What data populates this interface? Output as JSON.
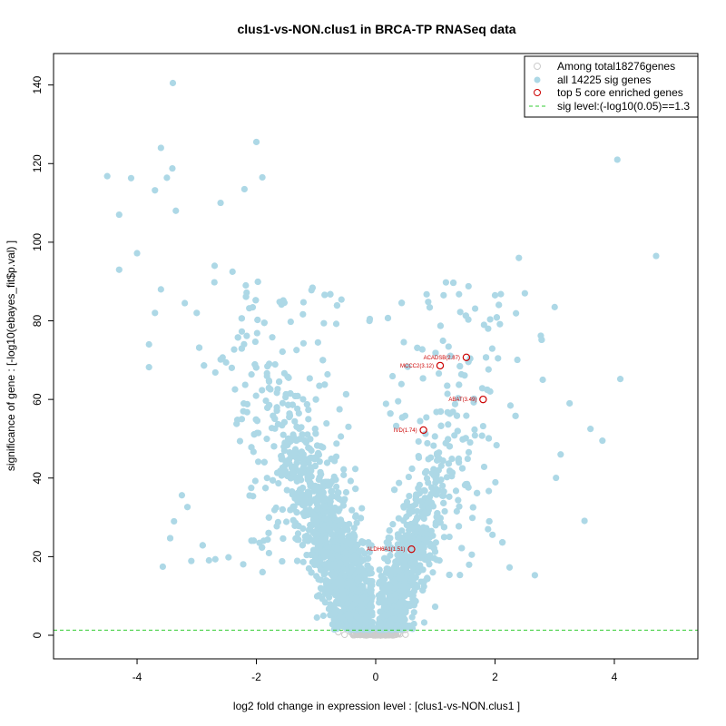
{
  "chart_data": {
    "type": "scatter",
    "title": "clus1-vs-NON.clus1 in BRCA-TP RNASeq data",
    "xlabel": "log2 fold change in expression level : [clus1-vs-NON.clus1 ]",
    "ylabel": "significance of gene : [-log10(ebayes_fit$p.val) ]",
    "xlim": [
      -5.4,
      5.4
    ],
    "ylim": [
      -6,
      148
    ],
    "xticks": [
      -4,
      -2,
      0,
      2,
      4
    ],
    "yticks": [
      0,
      20,
      40,
      60,
      80,
      100,
      120,
      140
    ],
    "sig_level": 1.3,
    "legend": [
      {
        "key": "total",
        "label": "Among total18276genes",
        "color": "#cccccc"
      },
      {
        "key": "sig",
        "label": "all 14225 sig genes",
        "color": "#add8e6"
      },
      {
        "key": "core",
        "label": "top 5 core enriched genes",
        "color": "#cc0000"
      },
      {
        "key": "line",
        "label": "sig level:(-log10(0.05)==1.3",
        "color": "#33cc33"
      }
    ],
    "core_genes": [
      {
        "label": "ACADSB(2.87)",
        "x": 1.52,
        "y": 70.7
      },
      {
        "label": "MCCC2(3.12)",
        "x": 1.08,
        "y": 68.6
      },
      {
        "label": "ABAT(3.49)",
        "x": 1.8,
        "y": 60.0
      },
      {
        "label": "IVD(1.74)",
        "x": 0.8,
        "y": 52.2
      },
      {
        "label": "ALDH6A1(1.51)",
        "x": 0.6,
        "y": 21.9
      }
    ],
    "sig_outliers": [
      [
        -3.4,
        140.5
      ],
      [
        -2.0,
        125.5
      ],
      [
        4.05,
        121.0
      ],
      [
        -3.6,
        124.0
      ],
      [
        -4.5,
        116.8
      ],
      [
        -4.1,
        116.3
      ],
      [
        -3.5,
        116.4
      ],
      [
        -1.9,
        116.5
      ],
      [
        -3.7,
        113.2
      ],
      [
        -4.3,
        107.0
      ],
      [
        -4.0,
        97.2
      ],
      [
        -4.3,
        93.0
      ],
      [
        4.7,
        96.5
      ],
      [
        2.4,
        96.0
      ],
      [
        -3.6,
        88.0
      ],
      [
        -3.8,
        74.0
      ],
      [
        -3.8,
        68.2
      ],
      [
        4.1,
        65.2
      ],
      [
        3.8,
        49.5
      ],
      [
        3.5,
        29.1
      ],
      [
        -3.2,
        84.5
      ],
      [
        -3.0,
        82.0
      ],
      [
        -2.7,
        94.0
      ],
      [
        -2.4,
        92.5
      ],
      [
        -3.7,
        82.0
      ],
      [
        3.6,
        52.5
      ],
      [
        3.1,
        46.0
      ],
      [
        2.8,
        65.0
      ],
      [
        3.25,
        59.0
      ],
      [
        3.0,
        83.5
      ],
      [
        2.5,
        87.0
      ],
      [
        2.0,
        86.5
      ],
      [
        -2.2,
        113.5
      ],
      [
        -2.6,
        110.0
      ],
      [
        -3.35,
        108.0
      ]
    ]
  }
}
